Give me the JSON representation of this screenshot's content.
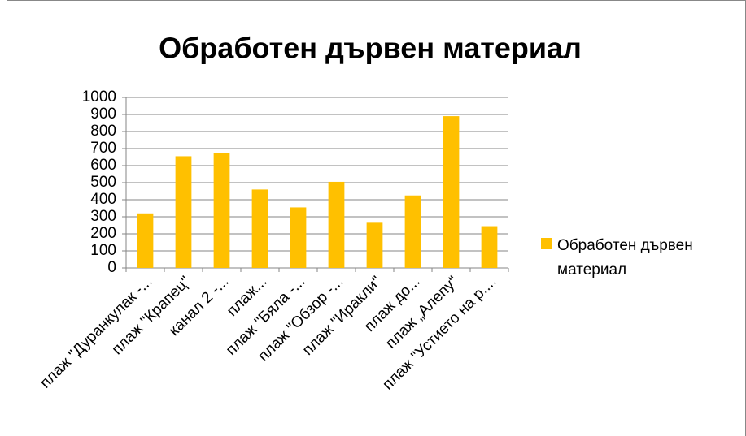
{
  "chart_data": {
    "type": "bar",
    "title": "Обработен дървен материал",
    "categories": [
      "плаж \"Дуранкулак -...",
      "плаж \"Крапец\"",
      "канал 2 -...",
      "плаж...",
      "плаж \"Бяла -...",
      "плаж \"Обзор -...",
      "плаж \"Иракли\"",
      "плаж до...",
      "плаж „Алепу“",
      "плаж \"Устието на р...."
    ],
    "series": [
      {
        "name": "Обработен дървен материал",
        "color": "#ffc000",
        "values": [
          320,
          655,
          675,
          460,
          355,
          505,
          265,
          425,
          890,
          245
        ]
      }
    ],
    "ylim": [
      0,
      1000
    ],
    "yticks": [
      0,
      100,
      200,
      300,
      400,
      500,
      600,
      700,
      800,
      900,
      1000
    ],
    "grid": true,
    "legend": "right"
  }
}
